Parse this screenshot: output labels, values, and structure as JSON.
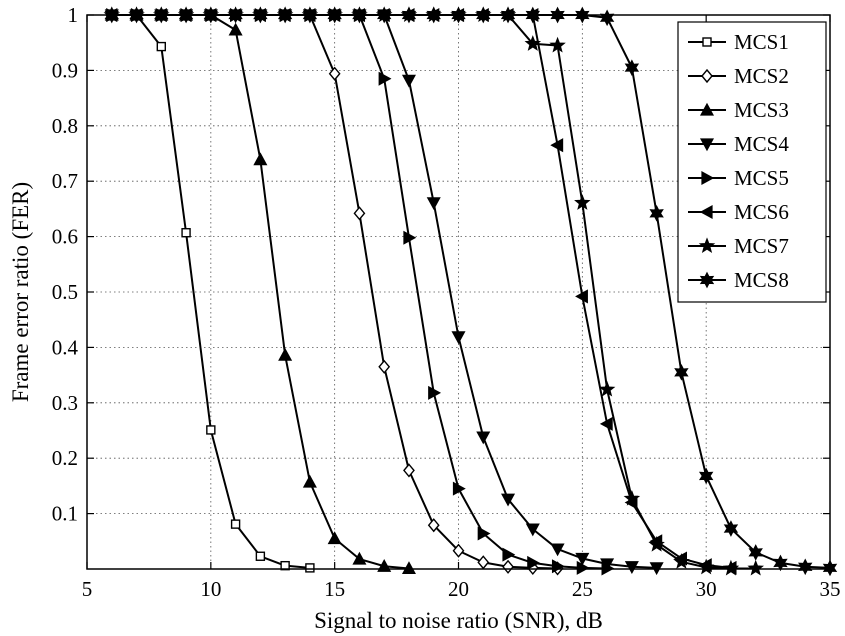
{
  "chart_data": {
    "type": "line",
    "xlabel": "Signal to noise ratio (SNR), dB",
    "ylabel": "Frame error ratio (FER)",
    "xlim": [
      5,
      35
    ],
    "ylim": [
      0,
      1
    ],
    "x_ticks": [
      5,
      10,
      15,
      20,
      25,
      30,
      35
    ],
    "y_ticks": [
      0.1,
      0.2,
      0.3,
      0.4,
      0.5,
      0.6,
      0.7,
      0.8,
      0.9,
      1
    ],
    "y_tick_labels": [
      "0.1",
      "0.2",
      "0.3",
      "0.4",
      "0.5",
      "0.6",
      "0.7",
      "0.8",
      "0.9",
      "1"
    ],
    "x_tick_labels": [
      "5",
      "10",
      "15",
      "20",
      "25",
      "30",
      "35"
    ],
    "grid": true,
    "legend_position": "top-right",
    "series": [
      {
        "name": "MCS1",
        "marker": "square",
        "x": [
          6,
          7,
          8,
          9,
          10,
          11,
          12,
          13,
          14
        ],
        "y": [
          1,
          1,
          0.943,
          0.607,
          0.251,
          0.081,
          0.023,
          0.006,
          0.002
        ]
      },
      {
        "name": "MCS2",
        "marker": "diamond",
        "x": [
          6,
          7,
          8,
          9,
          10,
          11,
          12,
          13,
          14,
          15,
          16,
          17,
          18,
          19,
          20,
          21,
          22,
          23,
          24
        ],
        "y": [
          1,
          1,
          1,
          1,
          1,
          1,
          1,
          1,
          1,
          0.894,
          0.642,
          0.365,
          0.178,
          0.079,
          0.033,
          0.012,
          0.004,
          0.002,
          0.001
        ]
      },
      {
        "name": "MCS3",
        "marker": "triangle-up",
        "x": [
          6,
          7,
          8,
          9,
          10,
          11,
          12,
          13,
          14,
          15,
          16,
          17,
          18
        ],
        "y": [
          1,
          1,
          1,
          1,
          1,
          0.973,
          0.739,
          0.386,
          0.157,
          0.055,
          0.018,
          0.005,
          0.001
        ]
      },
      {
        "name": "MCS4",
        "marker": "triangle-down",
        "x": [
          6,
          7,
          8,
          9,
          10,
          11,
          12,
          13,
          14,
          15,
          16,
          17,
          18,
          19,
          20,
          21,
          22,
          23,
          24,
          25,
          26,
          27,
          28
        ],
        "y": [
          1,
          1,
          1,
          1,
          1,
          1,
          1,
          1,
          1,
          1,
          1,
          1,
          0.882,
          0.661,
          0.419,
          0.238,
          0.126,
          0.072,
          0.036,
          0.019,
          0.009,
          0.004,
          0.002
        ]
      },
      {
        "name": "MCS5",
        "marker": "triangle-right",
        "x": [
          6,
          7,
          8,
          9,
          10,
          11,
          12,
          13,
          14,
          15,
          16,
          17,
          18,
          19,
          20,
          21,
          22,
          23,
          24,
          25,
          26
        ],
        "y": [
          1,
          1,
          1,
          1,
          1,
          1,
          1,
          1,
          1,
          1,
          1,
          0.885,
          0.598,
          0.318,
          0.145,
          0.064,
          0.026,
          0.011,
          0.005,
          0.002,
          0.001
        ]
      },
      {
        "name": "MCS6",
        "marker": "triangle-left",
        "x": [
          6,
          7,
          8,
          9,
          10,
          11,
          12,
          13,
          14,
          15,
          16,
          17,
          18,
          19,
          20,
          21,
          22,
          23,
          24,
          25,
          26,
          27,
          28,
          29,
          30,
          31
        ],
        "y": [
          1,
          1,
          1,
          1,
          1,
          1,
          1,
          1,
          1,
          1,
          1,
          1,
          1,
          1,
          1,
          1,
          1,
          1,
          0.765,
          0.492,
          0.262,
          0.12,
          0.05,
          0.019,
          0.007,
          0.002
        ]
      },
      {
        "name": "MCS7",
        "marker": "star",
        "x": [
          6,
          7,
          8,
          9,
          10,
          11,
          12,
          13,
          14,
          15,
          16,
          17,
          18,
          19,
          20,
          21,
          22,
          23,
          24,
          25,
          26,
          27,
          28,
          29,
          30,
          31,
          32
        ],
        "y": [
          1,
          1,
          1,
          1,
          1,
          1,
          1,
          1,
          1,
          1,
          1,
          1,
          1,
          1,
          1,
          1,
          1,
          0.948,
          0.945,
          0.661,
          0.324,
          0.127,
          0.044,
          0.013,
          0.003,
          0.001,
          0.001
        ]
      },
      {
        "name": "MCS8",
        "marker": "hexagram",
        "x": [
          6,
          7,
          8,
          9,
          10,
          11,
          12,
          13,
          14,
          15,
          16,
          17,
          18,
          19,
          20,
          21,
          22,
          23,
          24,
          25,
          26,
          27,
          28,
          29,
          30,
          31,
          32,
          33,
          34,
          35
        ],
        "y": [
          1,
          1,
          1,
          1,
          1,
          1,
          1,
          1,
          1,
          1,
          1,
          1,
          1,
          1,
          1,
          1,
          1,
          1,
          1,
          1,
          0.995,
          0.905,
          0.642,
          0.355,
          0.168,
          0.073,
          0.03,
          0.011,
          0.004,
          0.002
        ]
      }
    ]
  }
}
